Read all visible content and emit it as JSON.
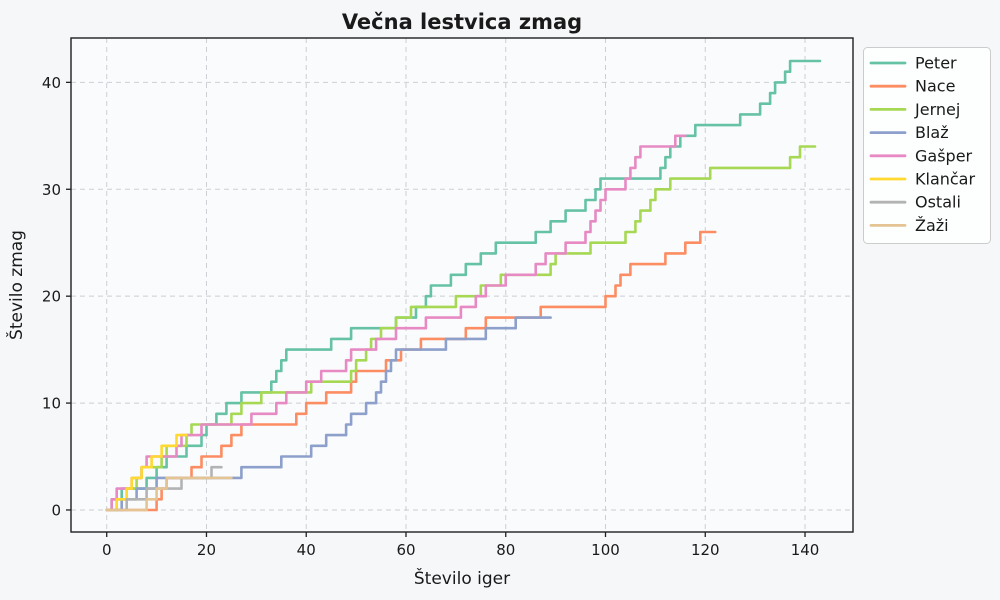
{
  "chart_data": {
    "type": "line",
    "line_style": "step-after",
    "title": "Večna lestvica zmag",
    "xlabel": "Število iger",
    "ylabel": "Število zmag",
    "x_ticks": [
      0,
      20,
      40,
      60,
      80,
      100,
      120,
      140
    ],
    "y_ticks": [
      0,
      10,
      20,
      30,
      40
    ],
    "xlim": [
      -7.16,
      149.62
    ],
    "ylim": [
      -2.06,
      44.15
    ],
    "grid": "dashed, both axes",
    "legend_position": "upper right, outside plot edge",
    "series": [
      {
        "id": "peter",
        "name": "Peter",
        "color": "#66c2a5",
        "final": {
          "games": 143,
          "wins": 42
        },
        "points": [
          [
            0,
            0
          ],
          [
            1,
            1
          ],
          [
            3,
            2
          ],
          [
            8,
            3
          ],
          [
            10,
            4
          ],
          [
            12,
            5
          ],
          [
            16,
            6
          ],
          [
            19,
            7
          ],
          [
            20,
            8
          ],
          [
            22,
            9
          ],
          [
            24,
            10
          ],
          [
            27,
            11
          ],
          [
            33,
            12
          ],
          [
            34,
            13
          ],
          [
            35,
            14
          ],
          [
            36,
            15
          ],
          [
            45,
            16
          ],
          [
            49,
            17
          ],
          [
            58,
            18
          ],
          [
            62,
            19
          ],
          [
            64,
            20
          ],
          [
            65,
            21
          ],
          [
            69,
            22
          ],
          [
            72,
            23
          ],
          [
            75,
            24
          ],
          [
            78,
            25
          ],
          [
            86,
            26
          ],
          [
            89,
            27
          ],
          [
            92,
            28
          ],
          [
            96,
            29
          ],
          [
            98,
            30
          ],
          [
            99,
            31
          ],
          [
            111,
            32
          ],
          [
            112,
            33
          ],
          [
            113,
            34
          ],
          [
            115,
            35
          ],
          [
            118,
            36
          ],
          [
            127,
            37
          ],
          [
            131,
            38
          ],
          [
            133,
            39
          ],
          [
            134,
            40
          ],
          [
            136,
            41
          ],
          [
            137,
            42
          ],
          [
            143,
            42
          ]
        ]
      },
      {
        "id": "nace",
        "name": "Nace",
        "color": "#fc8d62",
        "final": {
          "games": 122,
          "wins": 26
        },
        "points": [
          [
            0,
            0
          ],
          [
            10,
            1
          ],
          [
            11,
            2
          ],
          [
            12,
            3
          ],
          [
            17,
            4
          ],
          [
            19,
            5
          ],
          [
            23,
            6
          ],
          [
            25,
            7
          ],
          [
            27,
            8
          ],
          [
            38,
            9
          ],
          [
            40,
            10
          ],
          [
            44,
            11
          ],
          [
            49,
            12
          ],
          [
            50,
            13
          ],
          [
            56,
            14
          ],
          [
            59,
            15
          ],
          [
            63,
            16
          ],
          [
            72,
            17
          ],
          [
            76,
            18
          ],
          [
            87,
            19
          ],
          [
            100,
            20
          ],
          [
            102,
            21
          ],
          [
            103,
            22
          ],
          [
            105,
            23
          ],
          [
            112,
            24
          ],
          [
            116,
            25
          ],
          [
            119,
            26
          ],
          [
            122,
            26
          ]
        ]
      },
      {
        "id": "jernej",
        "name": "Jernej",
        "color": "#a6d854",
        "final": {
          "games": 142,
          "wins": 34
        },
        "points": [
          [
            0,
            0
          ],
          [
            2,
            1
          ],
          [
            4,
            2
          ],
          [
            6,
            3
          ],
          [
            7,
            4
          ],
          [
            11,
            5
          ],
          [
            12,
            6
          ],
          [
            16,
            7
          ],
          [
            17,
            8
          ],
          [
            25,
            9
          ],
          [
            27,
            10
          ],
          [
            31,
            11
          ],
          [
            41,
            12
          ],
          [
            49,
            13
          ],
          [
            50,
            14
          ],
          [
            52,
            15
          ],
          [
            53,
            16
          ],
          [
            55,
            17
          ],
          [
            58,
            18
          ],
          [
            61,
            19
          ],
          [
            70,
            20
          ],
          [
            75,
            21
          ],
          [
            79,
            22
          ],
          [
            89,
            23
          ],
          [
            90,
            24
          ],
          [
            97,
            25
          ],
          [
            104,
            26
          ],
          [
            106,
            27
          ],
          [
            107,
            28
          ],
          [
            109,
            29
          ],
          [
            110,
            30
          ],
          [
            113,
            31
          ],
          [
            121,
            32
          ],
          [
            137,
            33
          ],
          [
            139,
            34
          ],
          [
            142,
            34
          ]
        ]
      },
      {
        "id": "blaz",
        "name": "Blaž",
        "color": "#8da0cb",
        "final": {
          "games": 89,
          "wins": 18
        },
        "points": [
          [
            0,
            0
          ],
          [
            3,
            1
          ],
          [
            6,
            2
          ],
          [
            10,
            3
          ],
          [
            27,
            4
          ],
          [
            35,
            5
          ],
          [
            41,
            6
          ],
          [
            44,
            7
          ],
          [
            48,
            8
          ],
          [
            49,
            9
          ],
          [
            52,
            10
          ],
          [
            54,
            11
          ],
          [
            55,
            12
          ],
          [
            56,
            13
          ],
          [
            57,
            14
          ],
          [
            58,
            15
          ],
          [
            68,
            16
          ],
          [
            76,
            17
          ],
          [
            82,
            18
          ],
          [
            89,
            18
          ]
        ]
      },
      {
        "id": "gasper",
        "name": "Gašper",
        "color": "#e78ac3",
        "final": {
          "games": 116,
          "wins": 35
        },
        "points": [
          [
            0,
            0
          ],
          [
            1,
            1
          ],
          [
            2,
            2
          ],
          [
            5,
            3
          ],
          [
            7,
            4
          ],
          [
            8,
            5
          ],
          [
            14,
            6
          ],
          [
            15,
            7
          ],
          [
            19,
            8
          ],
          [
            29,
            9
          ],
          [
            34,
            10
          ],
          [
            36,
            11
          ],
          [
            40,
            12
          ],
          [
            43,
            13
          ],
          [
            48,
            14
          ],
          [
            49,
            15
          ],
          [
            54,
            16
          ],
          [
            58,
            17
          ],
          [
            64,
            18
          ],
          [
            71,
            19
          ],
          [
            74,
            20
          ],
          [
            76,
            21
          ],
          [
            80,
            22
          ],
          [
            86,
            23
          ],
          [
            88,
            24
          ],
          [
            92,
            25
          ],
          [
            96,
            26
          ],
          [
            97,
            27
          ],
          [
            98,
            28
          ],
          [
            99,
            29
          ],
          [
            100,
            30
          ],
          [
            104,
            31
          ],
          [
            105,
            32
          ],
          [
            106,
            33
          ],
          [
            107,
            34
          ],
          [
            114,
            35
          ],
          [
            116,
            35
          ]
        ]
      },
      {
        "id": "klancar",
        "name": "Klančar",
        "color": "#ffd92f",
        "final": {
          "games": 16,
          "wins": 7
        },
        "points": [
          [
            0,
            0
          ],
          [
            2,
            1
          ],
          [
            4,
            2
          ],
          [
            5,
            3
          ],
          [
            7,
            4
          ],
          [
            9,
            5
          ],
          [
            11,
            6
          ],
          [
            14,
            7
          ],
          [
            16,
            7
          ]
        ]
      },
      {
        "id": "ostali",
        "name": "Ostali",
        "color": "#b3b3b3",
        "final": {
          "games": 23,
          "wins": 4
        },
        "points": [
          [
            0,
            0
          ],
          [
            4,
            1
          ],
          [
            8,
            2
          ],
          [
            15,
            3
          ],
          [
            21,
            4
          ],
          [
            23,
            4
          ]
        ]
      },
      {
        "id": "zazi",
        "name": "Žaži",
        "color": "#e5c494",
        "final": {
          "games": 25,
          "wins": 3
        },
        "points": [
          [
            0,
            0
          ],
          [
            8,
            1
          ],
          [
            10,
            2
          ],
          [
            12,
            3
          ],
          [
            25,
            3
          ]
        ]
      }
    ]
  },
  "colors": {
    "figure_bg": "#f5f7f9",
    "plot_bg": "#fafbfd",
    "grid": "#cbcfd3",
    "spine": "#1f1f1f",
    "legend_bg": "#fefefe",
    "legend_border": "#cccccc",
    "text": "#1a1a1a"
  }
}
